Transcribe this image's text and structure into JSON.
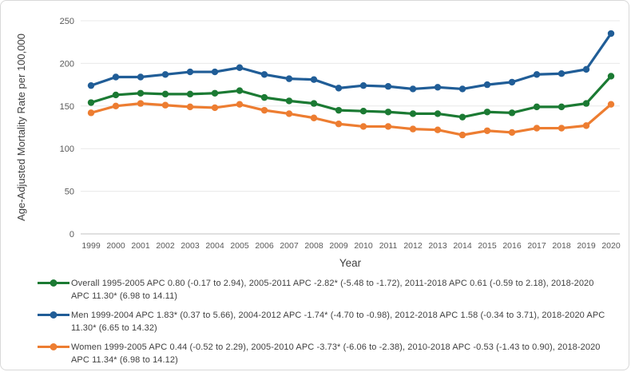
{
  "chart_data": {
    "type": "line",
    "x": [
      1999,
      2000,
      2001,
      2002,
      2003,
      2004,
      2005,
      2006,
      2007,
      2008,
      2009,
      2010,
      2011,
      2012,
      2013,
      2014,
      2015,
      2016,
      2017,
      2018,
      2019,
      2020
    ],
    "xlabel": "Year",
    "ylabel": "Age-Adjusted Mortality Rate per 100,000",
    "ylim": [
      0,
      250
    ],
    "yticks": [
      0,
      50,
      100,
      150,
      200,
      250
    ],
    "grid": "horizontal",
    "legend_position": "bottom-left",
    "series": [
      {
        "name": "Overall",
        "color": "#1B7A33",
        "values": [
          154,
          163,
          165,
          164,
          164,
          165,
          168,
          160,
          156,
          153,
          145,
          144,
          143,
          141,
          141,
          137,
          143,
          142,
          149,
          149,
          153,
          185
        ]
      },
      {
        "name": "Men",
        "color": "#205D97",
        "values": [
          174,
          184,
          184,
          187,
          190,
          190,
          195,
          187,
          182,
          181,
          171,
          174,
          173,
          170,
          172,
          170,
          175,
          178,
          187,
          188,
          193,
          235
        ]
      },
      {
        "name": "Women",
        "color": "#ED7D31",
        "values": [
          142,
          150,
          153,
          151,
          149,
          148,
          152,
          145,
          141,
          136,
          129,
          126,
          126,
          123,
          122,
          116,
          121,
          119,
          124,
          124,
          127,
          152
        ]
      }
    ],
    "legend": [
      {
        "series": "Overall",
        "color": "#1B7A33",
        "text": "Overall 1995-2005 APC 0.80 (-0.17 to 2.94), 2005-2011 APC -2.82* (-5.48 to -1.72), 2011-2018 APC 0.61 (-0.59 to 2.18), 2018-2020 APC 11.30* (6.98 to 14.11)"
      },
      {
        "series": "Men",
        "color": "#205D97",
        "text": "Men 1999-2004 APC 1.83* (0.37 to 5.66), 2004-2012 APC -1.74* (-4.70 to -0.98), 2012-2018 APC 1.58 (-0.34 to 3.71), 2018-2020 APC 11.30* (6.65 to 14.32)"
      },
      {
        "series": "Women",
        "color": "#ED7D31",
        "text": "Women 1999-2005 APC 0.44 (-0.52 to 2.29), 2005-2010 APC -3.73* (-6.06 to -2.38), 2010-2018 APC -0.53 (-1.43 to 0.90), 2018-2020 APC 11.34* (6.98 to 14.12)"
      }
    ],
    "axis_colors": {
      "tick_label": "#595959",
      "axis_title": "#404040",
      "gridline": "#e8e8e8",
      "zero_line": "#c0c0c0"
    }
  }
}
